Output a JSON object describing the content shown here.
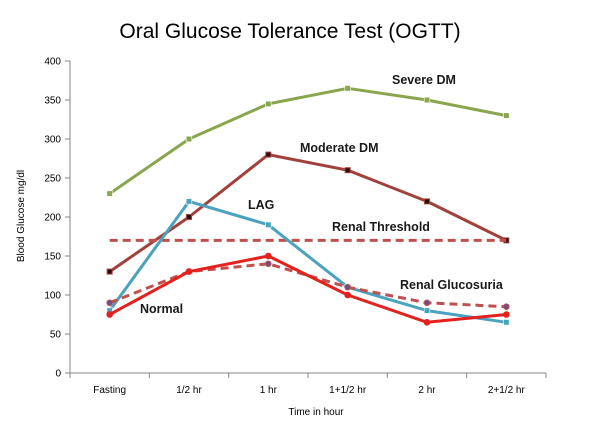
{
  "chart_data": {
    "type": "line",
    "title": "Oral Glucose Tolerance Test (OGTT)",
    "xlabel": "Time in hour",
    "ylabel": "Blood  Glucose   mg/dl",
    "categories": [
      "Fasting",
      "1/2 hr",
      "1 hr",
      "1+1/2 hr",
      "2 hr",
      "2+1/2 hr"
    ],
    "ylim": [
      0,
      400
    ],
    "yticks": [
      "0",
      "50",
      "100",
      "150",
      "200",
      "250",
      "300",
      "350",
      "400"
    ],
    "grid": false,
    "legend": "none (labels placed next to lines)",
    "series": [
      {
        "name": "Severe DM",
        "color": "#8aa54e",
        "style": "solid",
        "marker": "square",
        "values": [
          230,
          300,
          345,
          365,
          350,
          330
        ]
      },
      {
        "name": "Moderate DM",
        "color": "#a0413c",
        "style": "solid",
        "marker": "star",
        "values": [
          130,
          200,
          280,
          260,
          220,
          170
        ]
      },
      {
        "name": "LAG",
        "color": "#4ba2bf",
        "style": "solid",
        "marker": "square",
        "values": [
          80,
          220,
          190,
          110,
          80,
          65
        ]
      },
      {
        "name": "Renal Threshold",
        "color": "#c0504d",
        "style": "dashed",
        "marker": "none",
        "values": [
          170,
          170,
          170,
          170,
          170,
          170
        ]
      },
      {
        "name": "Renal Glucosuria",
        "color": "#c0504d",
        "style": "dashed",
        "marker": "circle",
        "values": [
          90,
          130,
          140,
          110,
          90,
          85
        ]
      },
      {
        "name": "Normal",
        "color": "#e3211e",
        "style": "solid",
        "marker": "circle",
        "values": [
          75,
          130,
          150,
          100,
          65,
          75
        ]
      }
    ]
  }
}
